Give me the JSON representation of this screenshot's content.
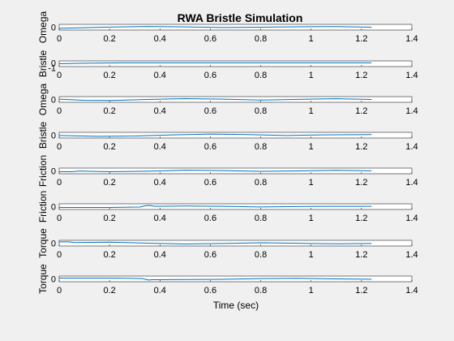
{
  "chart_data": {
    "type": "line",
    "title": "RWA Bristle Simulation",
    "xlabel": "Time (sec)",
    "xlim": [
      0,
      1.4
    ],
    "x_ticks": [
      "0",
      "0.2",
      "0.4",
      "0.6",
      "0.8",
      "1",
      "1.2",
      "1.4"
    ],
    "line_color": "#0072bd",
    "subplots": [
      {
        "ylabel": "Omega",
        "y_ticks": [
          "0"
        ],
        "ylim": [
          -1,
          1
        ],
        "series": [
          {
            "x": [
              0,
              0.2,
              0.35,
              0.5,
              0.65,
              0.8,
              0.95,
              1.1,
              1.24
            ],
            "y": [
              -0.4,
              0.05,
              0.25,
              0.1,
              -0.1,
              0.0,
              0.15,
              0.2,
              0.0
            ]
          }
        ]
      },
      {
        "ylabel": "Bristle",
        "y_ticks": [
          "0",
          "-1"
        ],
        "ylim": [
          -1.2,
          0.6
        ],
        "series": [
          {
            "x": [
              0,
              0.1,
              0.25,
              0.4,
              0.55,
              0.7,
              0.85,
              1.0,
              1.15,
              1.24
            ],
            "y": [
              -0.3,
              -0.15,
              0.0,
              0.0,
              0.0,
              0.0,
              0.0,
              0.0,
              0.0,
              0.0
            ]
          }
        ]
      },
      {
        "ylabel": "Omega",
        "y_ticks": [
          "0"
        ],
        "ylim": [
          -1,
          1
        ],
        "series": [
          {
            "x": [
              0,
              0.1,
              0.2,
              0.35,
              0.5,
              0.65,
              0.8,
              0.95,
              1.1,
              1.24
            ],
            "y": [
              0.1,
              -0.3,
              -0.35,
              0.0,
              0.3,
              0.1,
              -0.2,
              0.05,
              0.25,
              0.0
            ]
          }
        ]
      },
      {
        "ylabel": "Bristle",
        "y_ticks": [
          "0"
        ],
        "ylim": [
          -1,
          1
        ],
        "series": [
          {
            "x": [
              0,
              0.15,
              0.3,
              0.45,
              0.6,
              0.75,
              0.9,
              1.05,
              1.24
            ],
            "y": [
              -0.1,
              -0.4,
              -0.3,
              0.1,
              0.4,
              0.2,
              -0.1,
              0.1,
              0.2
            ]
          }
        ]
      },
      {
        "ylabel": "Friction",
        "y_ticks": [
          "0"
        ],
        "ylim": [
          -1,
          1
        ],
        "series": [
          {
            "x": [
              0,
              0.05,
              0.08,
              0.2,
              0.35,
              0.5,
              0.65,
              0.8,
              0.95,
              1.1,
              1.24
            ],
            "y": [
              -0.3,
              -0.3,
              -0.05,
              -0.3,
              -0.1,
              0.25,
              0.1,
              -0.15,
              0.0,
              0.2,
              0.05
            ]
          }
        ]
      },
      {
        "ylabel": "Friction",
        "y_ticks": [
          "0"
        ],
        "ylim": [
          -1,
          1
        ],
        "series": [
          {
            "x": [
              0,
              0.2,
              0.32,
              0.345,
              0.36,
              0.38,
              0.5,
              0.65,
              0.8,
              0.95,
              1.1,
              1.24
            ],
            "y": [
              -0.3,
              -0.3,
              -0.15,
              0.35,
              0.4,
              0.1,
              0.2,
              0.1,
              -0.1,
              0.05,
              0.1,
              0.1
            ]
          }
        ]
      },
      {
        "ylabel": "Torque",
        "y_ticks": [
          "0"
        ],
        "ylim": [
          -1,
          1
        ],
        "series": [
          {
            "x": [
              0,
              0.04,
              0.06,
              0.2,
              0.35,
              0.5,
              0.65,
              0.8,
              0.95,
              1.1,
              1.24
            ],
            "y": [
              0.45,
              0.45,
              0.2,
              0.35,
              0.0,
              -0.3,
              -0.1,
              0.15,
              -0.05,
              -0.2,
              -0.1
            ]
          }
        ]
      },
      {
        "ylabel": "Torque",
        "y_ticks": [
          "0"
        ],
        "ylim": [
          -1,
          1
        ],
        "series": [
          {
            "x": [
              0,
              0.1,
              0.25,
              0.33,
              0.355,
              0.37,
              0.5,
              0.65,
              0.8,
              0.95,
              1.1,
              1.24
            ],
            "y": [
              0.3,
              0.3,
              0.25,
              0.1,
              -0.4,
              -0.3,
              -0.2,
              -0.15,
              0.1,
              0.2,
              0.0,
              -0.1
            ]
          }
        ]
      }
    ]
  }
}
